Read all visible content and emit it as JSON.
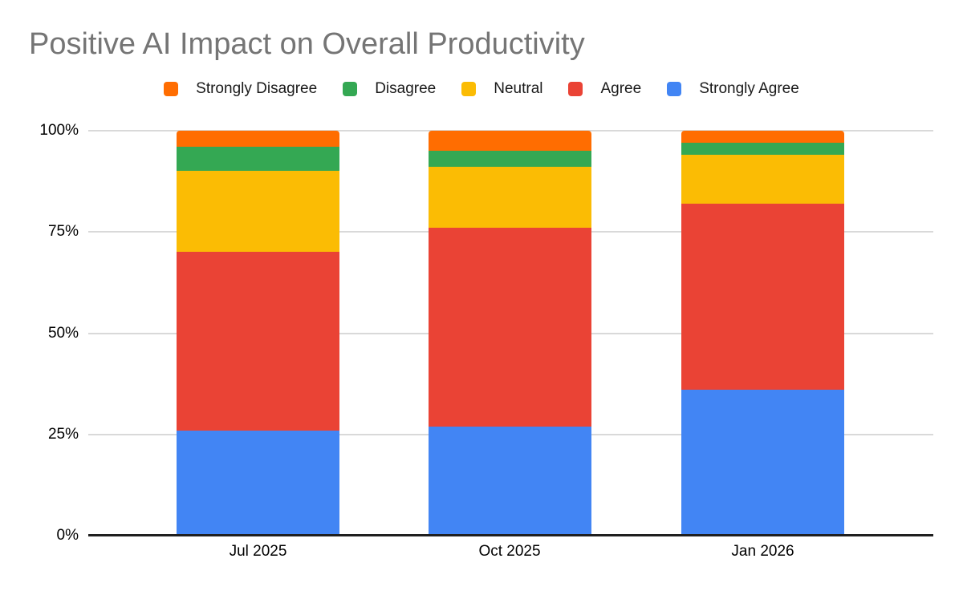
{
  "chart_data": {
    "type": "bar",
    "subtype": "stacked-100-percent-column",
    "title": "Positive AI Impact on Overall Productivity",
    "title_color": "#757575",
    "categories": [
      "Jul 2025",
      "Oct 2025",
      "Jan 2026"
    ],
    "series": [
      {
        "name": "Strongly Disagree",
        "color": "#FF6D01",
        "values": [
          4,
          5,
          3
        ]
      },
      {
        "name": "Disagree",
        "color": "#34A853",
        "values": [
          6,
          4,
          3
        ]
      },
      {
        "name": "Neutral",
        "color": "#FBBC04",
        "values": [
          20,
          15,
          12
        ]
      },
      {
        "name": "Agree",
        "color": "#EA4335",
        "values": [
          44,
          49,
          46
        ]
      },
      {
        "name": "Strongly Agree",
        "color": "#4285F4",
        "values": [
          26,
          27,
          36
        ]
      }
    ],
    "stack_order_bottom_to_top": [
      "Strongly Agree",
      "Agree",
      "Neutral",
      "Disagree",
      "Strongly Disagree"
    ],
    "unit": "%",
    "xlabel": "",
    "ylabel": "",
    "ylim": [
      0,
      100
    ],
    "yticks": [
      {
        "value": 0,
        "label": "0%"
      },
      {
        "value": 25,
        "label": "25%"
      },
      {
        "value": 50,
        "label": "50%"
      },
      {
        "value": 75,
        "label": "75%"
      },
      {
        "value": 100,
        "label": "100%"
      }
    ],
    "legend_position": "top",
    "grid": true,
    "gridline_color": "#d9d9d9",
    "axis_line_color": "#1f1f1f"
  }
}
